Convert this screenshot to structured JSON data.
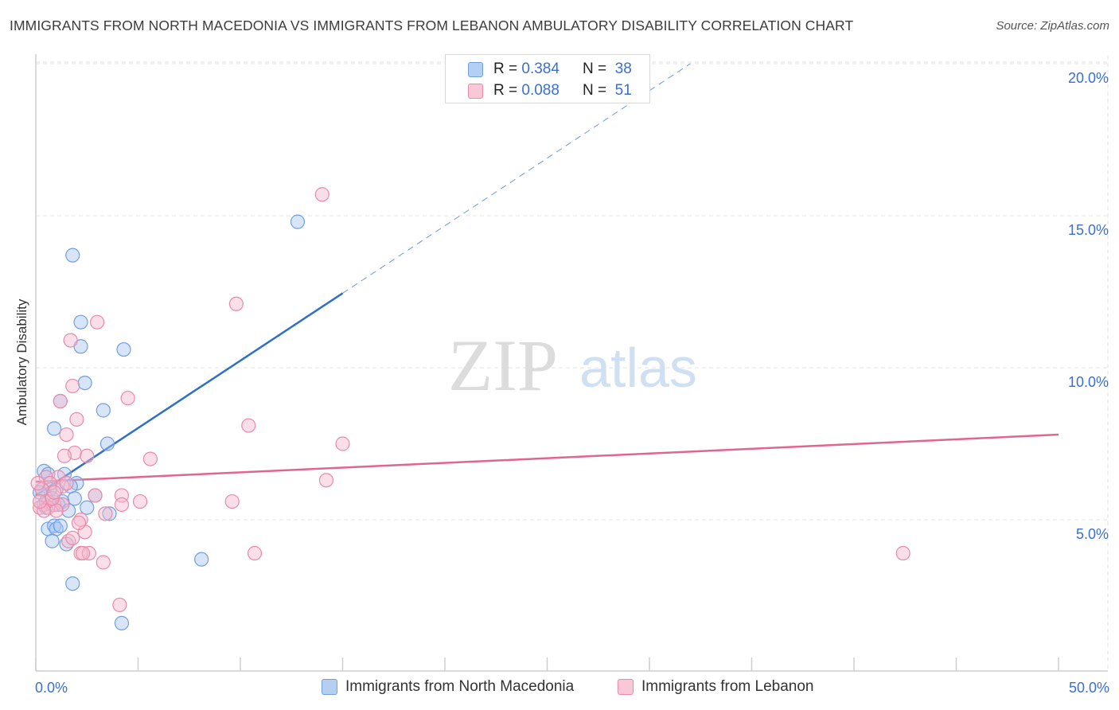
{
  "title": "IMMIGRANTS FROM NORTH MACEDONIA VS IMMIGRANTS FROM LEBANON AMBULATORY DISABILITY CORRELATION CHART",
  "source": "Source: ZipAtlas.com",
  "watermark": {
    "zip": "ZIP",
    "atlas": "atlas"
  },
  "legend_top": [
    {
      "r_label": "R =",
      "r_value": "0.384",
      "n_label": "N =",
      "n_value": "38"
    },
    {
      "r_label": "R =",
      "r_value": "0.088",
      "n_label": "N =",
      "n_value": "51"
    }
  ],
  "legend_bottom": [
    {
      "label": "Immigrants from North Macedonia"
    },
    {
      "label": "Immigrants from Lebanon"
    }
  ],
  "colors": {
    "blue_fill": "#a9c6ef",
    "blue_stroke": "#6f9fe0",
    "blue_line": "#2e6fcc",
    "pink_fill": "#f6b8cc",
    "pink_stroke": "#e98aab",
    "pink_line": "#e0668f",
    "grid": "#e3e3e3",
    "tick_text": "#3a6fd0"
  },
  "chart_data": {
    "type": "scatter",
    "title": "IMMIGRANTS FROM NORTH MACEDONIA VS IMMIGRANTS FROM LEBANON AMBULATORY DISABILITY CORRELATION CHART",
    "xlabel": "",
    "ylabel": "Ambulatory Disability",
    "xlim": [
      0,
      50
    ],
    "ylim": [
      0,
      20.5
    ],
    "x_tick_labels": [
      {
        "value": 0,
        "label": "0.0%"
      },
      {
        "value": 50,
        "label": "50.0%"
      }
    ],
    "y_tick_labels": [
      {
        "value": 5,
        "label": "5.0%"
      },
      {
        "value": 10,
        "label": "10.0%"
      },
      {
        "value": 15,
        "label": "15.0%"
      },
      {
        "value": 20,
        "label": "20.0%"
      }
    ],
    "series": [
      {
        "name": "Immigrants from North Macedonia",
        "color": "blue",
        "R": 0.384,
        "N": 38,
        "trend": {
          "x0": 0.0,
          "y0": 5.8,
          "x1": 15.0,
          "y1": 12.45,
          "dash_to_x": 32.0,
          "dash_to_y": 20.0
        },
        "points": [
          [
            1.8,
            13.7
          ],
          [
            2.2,
            11.5
          ],
          [
            2.2,
            10.7
          ],
          [
            4.3,
            10.6
          ],
          [
            2.4,
            9.5
          ],
          [
            3.3,
            8.6
          ],
          [
            1.2,
            8.9
          ],
          [
            0.9,
            8.0
          ],
          [
            3.5,
            7.5
          ],
          [
            0.4,
            6.6
          ],
          [
            0.6,
            6.5
          ],
          [
            1.4,
            6.5
          ],
          [
            2.0,
            6.2
          ],
          [
            0.7,
            6.0
          ],
          [
            1.0,
            6.0
          ],
          [
            1.7,
            6.1
          ],
          [
            0.3,
            6.0
          ],
          [
            0.6,
            5.6
          ],
          [
            1.3,
            5.6
          ],
          [
            1.9,
            5.7
          ],
          [
            2.9,
            5.8
          ],
          [
            0.5,
            5.4
          ],
          [
            1.1,
            5.5
          ],
          [
            3.6,
            5.2
          ],
          [
            0.6,
            4.7
          ],
          [
            0.9,
            4.8
          ],
          [
            1.0,
            4.7
          ],
          [
            1.2,
            4.8
          ],
          [
            0.8,
            4.3
          ],
          [
            1.5,
            4.2
          ],
          [
            8.1,
            3.7
          ],
          [
            1.8,
            2.9
          ],
          [
            4.2,
            1.6
          ],
          [
            12.8,
            14.8
          ],
          [
            0.2,
            5.9
          ],
          [
            1.6,
            5.3
          ],
          [
            0.4,
            5.5
          ],
          [
            2.5,
            5.4
          ]
        ]
      },
      {
        "name": "Immigrants from Lebanon",
        "color": "pink",
        "R": 0.088,
        "N": 51,
        "trend": {
          "x0": 0.0,
          "y0": 6.25,
          "x1": 50.0,
          "y1": 7.8
        },
        "points": [
          [
            14.0,
            15.7
          ],
          [
            9.8,
            12.1
          ],
          [
            3.0,
            11.5
          ],
          [
            1.7,
            10.9
          ],
          [
            1.8,
            9.4
          ],
          [
            4.5,
            9.0
          ],
          [
            1.2,
            8.9
          ],
          [
            2.0,
            8.3
          ],
          [
            10.4,
            8.1
          ],
          [
            1.5,
            7.8
          ],
          [
            15.0,
            7.5
          ],
          [
            1.9,
            7.2
          ],
          [
            1.4,
            7.1
          ],
          [
            2.5,
            7.1
          ],
          [
            5.6,
            7.0
          ],
          [
            0.5,
            6.4
          ],
          [
            1.1,
            6.4
          ],
          [
            14.2,
            6.3
          ],
          [
            0.7,
            6.2
          ],
          [
            1.3,
            6.1
          ],
          [
            0.3,
            6.0
          ],
          [
            4.2,
            5.8
          ],
          [
            2.9,
            5.8
          ],
          [
            9.6,
            5.6
          ],
          [
            4.2,
            5.5
          ],
          [
            5.1,
            5.6
          ],
          [
            0.5,
            5.6
          ],
          [
            0.9,
            5.5
          ],
          [
            1.3,
            5.5
          ],
          [
            0.2,
            5.4
          ],
          [
            0.6,
            5.4
          ],
          [
            1.0,
            5.3
          ],
          [
            3.4,
            5.2
          ],
          [
            0.4,
            5.3
          ],
          [
            0.2,
            5.6
          ],
          [
            2.2,
            5.0
          ],
          [
            2.4,
            4.6
          ],
          [
            2.1,
            4.9
          ],
          [
            1.6,
            4.3
          ],
          [
            1.8,
            4.4
          ],
          [
            2.2,
            3.9
          ],
          [
            2.6,
            3.9
          ],
          [
            10.7,
            3.9
          ],
          [
            42.4,
            3.9
          ],
          [
            3.3,
            3.6
          ],
          [
            4.1,
            2.2
          ],
          [
            0.8,
            5.7
          ],
          [
            1.5,
            6.2
          ],
          [
            0.9,
            5.9
          ],
          [
            2.3,
            3.9
          ],
          [
            0.1,
            6.2
          ]
        ]
      }
    ]
  }
}
